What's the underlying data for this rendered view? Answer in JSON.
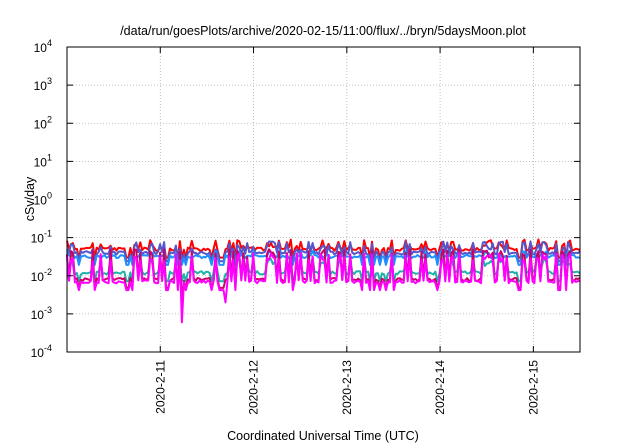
{
  "chart_data": {
    "type": "line",
    "title": "/data/run/goesPlots/archive/2020-02-15/11:00/flux/../bryn/5daysMoon.plot",
    "xlabel": "Coordinated Universal Time (UTC)",
    "ylabel": "cSv/day",
    "xlim": [
      "2020-02-10T00:00",
      "2020-02-15T12:00"
    ],
    "ylim": [
      0.0001,
      10000
    ],
    "yscale": "log",
    "grid": true,
    "x_tick_labels": [
      "2020-2-11",
      "2020-2-12",
      "2020-2-13",
      "2020-2-14",
      "2020-2-15"
    ],
    "y_ticks": [
      {
        "base": "10",
        "exp": "-4"
      },
      {
        "base": "10",
        "exp": "-3"
      },
      {
        "base": "10",
        "exp": "-2"
      },
      {
        "base": "10",
        "exp": "-1"
      },
      {
        "base": "10",
        "exp": "0"
      },
      {
        "base": "10",
        "exp": "1"
      },
      {
        "base": "10",
        "exp": "2"
      },
      {
        "base": "10",
        "exp": "3"
      },
      {
        "base": "10",
        "exp": "4"
      }
    ],
    "series": [
      {
        "color": "#ff0000",
        "base": 0.05,
        "spike_top": 0.09,
        "dip": 0.035
      },
      {
        "color": "#5555cc",
        "base": 0.04,
        "spike_top": 0.08,
        "dip": 0.009
      },
      {
        "color": "#1e90ff",
        "base": 0.032,
        "spike_top": 0.045,
        "dip": 0.02
      },
      {
        "color": "#20b2aa",
        "base": 0.012,
        "spike_top": 0.03,
        "dip": 0.008
      },
      {
        "color": "#cc0066",
        "base": 0.008,
        "spike_top": 0.05,
        "dip": 0.006
      },
      {
        "color": "#ff00ff",
        "base": 0.007,
        "spike_top": 0.04,
        "dip": 0.0006
      }
    ]
  }
}
